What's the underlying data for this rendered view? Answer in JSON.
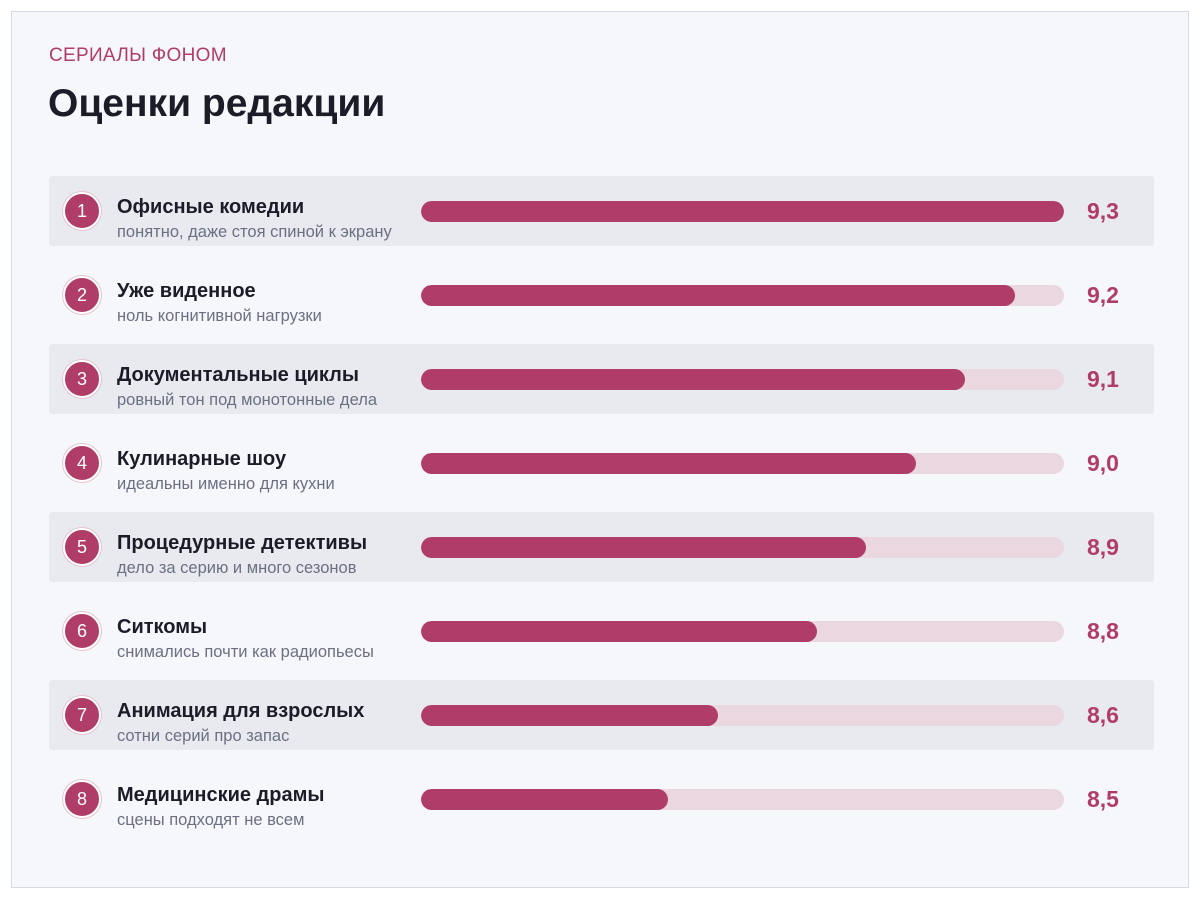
{
  "header": {
    "kicker": "СЕРИАЛЫ ФОНОМ",
    "title": "Оценки редакции"
  },
  "colors": {
    "accent": "#b03d68",
    "track": "#ead7df",
    "row_shade": "#e8eaf0",
    "background": "#f6f7fa"
  },
  "chart_data": {
    "type": "bar",
    "orientation": "horizontal",
    "title": "Оценки редакции",
    "subtitle": "СЕРИАЛЫ ФОНОМ",
    "xlim": [
      8.0,
      9.3
    ],
    "grid": false,
    "categories": [
      "Офисные комедии",
      "Уже виденное",
      "Документальные циклы",
      "Кулинарные шоу",
      "Процедурные детективы",
      "Ситкомы",
      "Анимация для взрослых",
      "Медицинские драмы"
    ],
    "values": [
      9.3,
      9.2,
      9.1,
      9.0,
      8.9,
      8.8,
      8.6,
      8.5
    ],
    "items": [
      {
        "rank": "1",
        "name": "Офисные комедии",
        "note": "понятно, даже стоя спиной к экрану",
        "score": 9.3,
        "score_label": "9,3"
      },
      {
        "rank": "2",
        "name": "Уже виденное",
        "note": "ноль когнитивной нагрузки",
        "score": 9.2,
        "score_label": "9,2"
      },
      {
        "rank": "3",
        "name": "Документальные циклы",
        "note": "ровный тон под монотонные дела",
        "score": 9.1,
        "score_label": "9,1"
      },
      {
        "rank": "4",
        "name": "Кулинарные шоу",
        "note": "идеальны именно для кухни",
        "score": 9.0,
        "score_label": "9,0"
      },
      {
        "rank": "5",
        "name": "Процедурные детективы",
        "note": "дело за серию и много сезонов",
        "score": 8.9,
        "score_label": "8,9"
      },
      {
        "rank": "6",
        "name": "Ситкомы",
        "note": "снимались почти как радиопьесы",
        "score": 8.8,
        "score_label": "8,8"
      },
      {
        "rank": "7",
        "name": "Анимация для взрослых",
        "note": "сотни серий про запас",
        "score": 8.6,
        "score_label": "8,6"
      },
      {
        "rank": "8",
        "name": "Медицинские драмы",
        "note": "сцены подходят не всем",
        "score": 8.5,
        "score_label": "8,5"
      }
    ]
  }
}
